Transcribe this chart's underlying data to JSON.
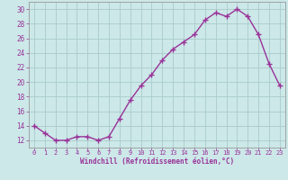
{
  "x": [
    0,
    1,
    2,
    3,
    4,
    5,
    6,
    7,
    8,
    9,
    10,
    11,
    12,
    13,
    14,
    15,
    16,
    17,
    18,
    19,
    20,
    21,
    22,
    23
  ],
  "y": [
    14,
    13,
    12,
    12,
    12.5,
    12.5,
    12,
    12.5,
    15,
    17.5,
    19.5,
    21,
    23,
    24.5,
    25.5,
    26.5,
    28.5,
    29.5,
    29,
    30,
    29,
    26.5,
    22.5,
    19.5
  ],
  "line_color": "#993399",
  "bg_color": "#cce8e8",
  "grid_color": "#aacccc",
  "xlabel": "Windchill (Refroidissement éolien,°C)",
  "xlabel_color": "#993399",
  "ylim": [
    11,
    31
  ],
  "yticks": [
    12,
    14,
    16,
    18,
    20,
    22,
    24,
    26,
    28,
    30
  ],
  "xlim": [
    -0.5,
    23.5
  ],
  "xticks": [
    0,
    1,
    2,
    3,
    4,
    5,
    6,
    7,
    8,
    9,
    10,
    11,
    12,
    13,
    14,
    15,
    16,
    17,
    18,
    19,
    20,
    21,
    22,
    23
  ],
  "tick_color": "#993399",
  "spine_color": "#999999"
}
